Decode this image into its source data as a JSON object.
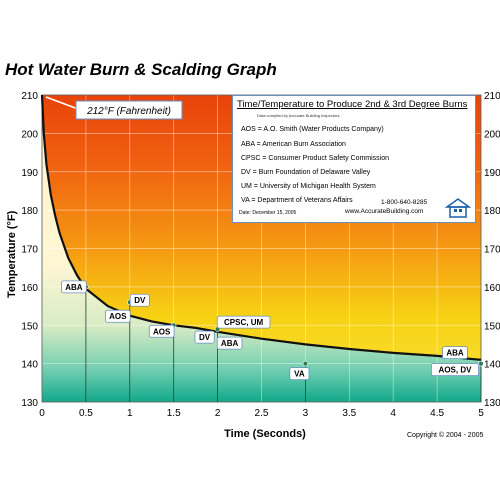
{
  "title": "Hot Water Burn & Scalding Graph",
  "copyright": "Copyright © 2004 - 2005",
  "colors": {
    "hot": "#e8450a",
    "mid": "#f7c010",
    "cool": "#fff6d0",
    "teal": "#0ea58a",
    "legend_border": "#6a8fc4"
  },
  "legend": {
    "title": "Time/Temperature to Produce 2nd & 3rd Degree Burns",
    "subtitle": "Data compiled by Accurate Building Inspectors",
    "items": [
      "AOS = A.O. Smith (Water Products Company)",
      "ABA = American Burn Association",
      "CPSC = Consumer Product Safety Commission",
      "DV = Burn Foundation of Delaware Valley",
      "UM = University of Michigan Health System",
      "VA = Department of Veterans Affairs"
    ],
    "phone": "1-800-640-8285",
    "website": "www.AccurateBuilding.com",
    "date": "Date: December 15, 2005",
    "icon": "house-icon"
  },
  "chart_data": {
    "type": "line",
    "title": "Hot Water Burn & Scalding Graph",
    "xlabel": "Time (Seconds)",
    "ylabel": "Temperature (°F)",
    "xlim": [
      0,
      5
    ],
    "ylim": [
      130,
      210
    ],
    "xticks": [
      "0",
      "0.5",
      "1",
      "1.5",
      "2",
      "2.5",
      "3",
      "3.5",
      "4",
      "4.5",
      "5"
    ],
    "yticks": [
      "130",
      "140",
      "150",
      "160",
      "170",
      "180",
      "190",
      "200",
      "210"
    ],
    "grid": true,
    "curve": {
      "x": [
        0,
        0.02,
        0.05,
        0.1,
        0.15,
        0.2,
        0.3,
        0.4,
        0.5,
        0.75,
        1,
        1.25,
        1.5,
        1.75,
        2,
        2.5,
        3,
        3.5,
        4,
        4.5,
        5
      ],
      "y": [
        210,
        200,
        192,
        184,
        178.5,
        174,
        167.5,
        163,
        159.5,
        155,
        152.5,
        151,
        150,
        149.3,
        148.3,
        146.5,
        145,
        143.8,
        142.8,
        142,
        141
      ]
    },
    "annotation": {
      "text": "212°F (Fahrenheit)",
      "x": 0,
      "y": 210
    },
    "points": [
      {
        "x": 0.5,
        "y": 160,
        "labels": [
          "ABA"
        ]
      },
      {
        "x": 1,
        "y": 156,
        "labels": [
          "DV",
          "AOS"
        ]
      },
      {
        "x": 1.5,
        "y": 150,
        "labels": [
          "AOS"
        ]
      },
      {
        "x": 2,
        "y": 149,
        "labels": [
          "CPSC, UM",
          "DV",
          "ABA"
        ]
      },
      {
        "x": 3,
        "y": 140,
        "labels": [
          "VA"
        ]
      },
      {
        "x": 5,
        "y": 140,
        "labels": [
          "ABA",
          "AOS, DV"
        ]
      }
    ]
  }
}
